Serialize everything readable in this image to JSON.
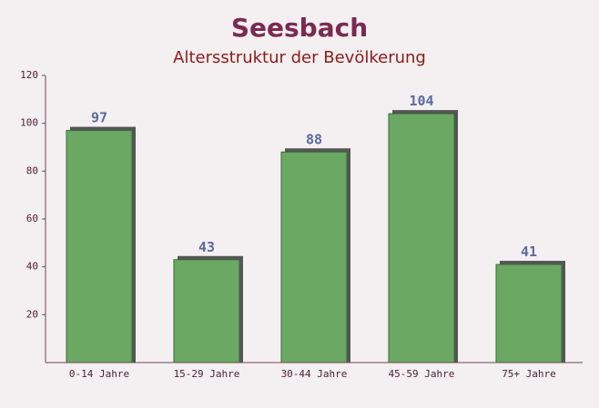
{
  "chart_data": {
    "type": "bar",
    "title": "Seesbach",
    "subtitle": "Altersstruktur der Bevölkerung",
    "categories": [
      "0-14 Jahre",
      "15-29 Jahre",
      "30-44 Jahre",
      "45-59 Jahre",
      "75+ Jahre"
    ],
    "values": [
      97,
      43,
      88,
      104,
      41
    ],
    "color": "#6aa864",
    "ylim": [
      0,
      120
    ],
    "yticks": [
      20,
      40,
      60,
      80,
      100,
      120
    ],
    "grid": false
  }
}
